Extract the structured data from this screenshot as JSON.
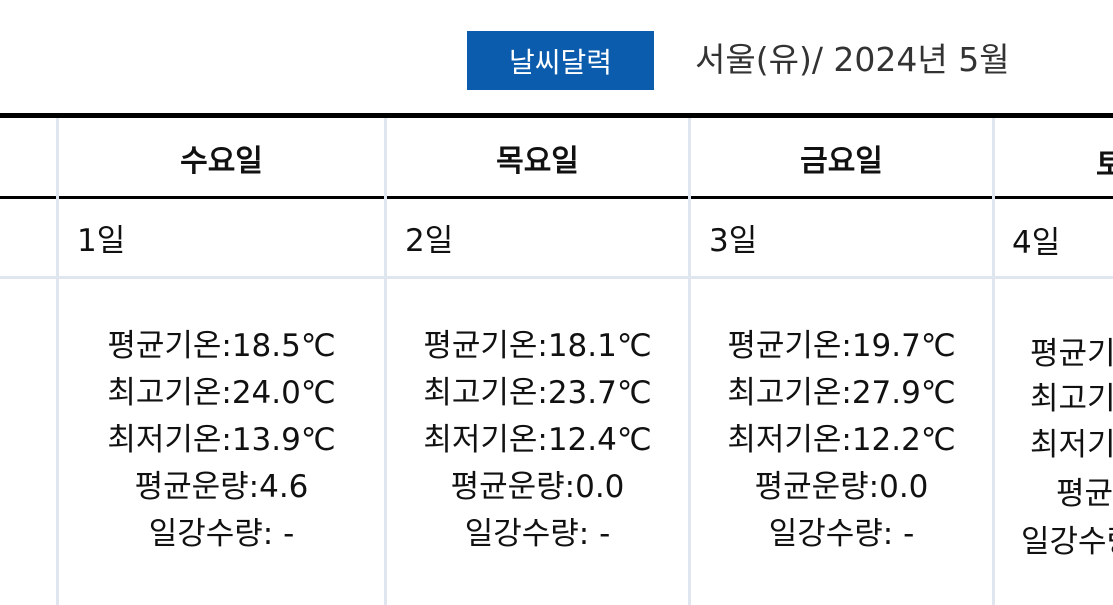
{
  "header": {
    "badge": "날씨달력",
    "title": "서울(유)/ 2024년 5월"
  },
  "days": [
    {
      "weekday": "수요일",
      "date": "1일",
      "avg_temp": "평균기온:18.5℃",
      "max_temp": "최고기온:24.0℃",
      "min_temp": "최저기온:13.9℃",
      "cloud": "평균운량:4.6",
      "rain": "일강수량: -"
    },
    {
      "weekday": "목요일",
      "date": "2일",
      "avg_temp": "평균기온:18.1℃",
      "max_temp": "최고기온:23.7℃",
      "min_temp": "최저기온:12.4℃",
      "cloud": "평균운량:0.0",
      "rain": "일강수량: -"
    },
    {
      "weekday": "금요일",
      "date": "3일",
      "avg_temp": "평균기온:19.7℃",
      "max_temp": "최고기온:27.9℃",
      "min_temp": "최저기온:12.2℃",
      "cloud": "평균운량:0.0",
      "rain": "일강수량: -"
    }
  ],
  "partial_day": {
    "weekday": "토요일",
    "date": "4일",
    "avg_temp": "평균기온",
    "max_temp": "최고기온",
    "min_temp": "최저기온",
    "cloud": "평균운량",
    "rain": "일강수량"
  },
  "colors": {
    "badge": "#0b5cad",
    "grid": "#dfe6f0"
  }
}
